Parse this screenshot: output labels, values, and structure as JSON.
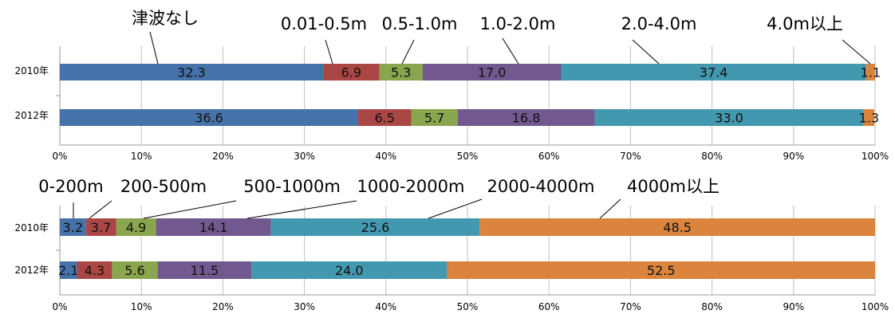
{
  "colors": [
    "#4672aa",
    "#aa4643",
    "#89a54e",
    "#71588f",
    "#4198af",
    "#db843d"
  ],
  "chart_data": [
    {
      "type": "bar",
      "orientation": "horizontal",
      "stacked": true,
      "percent_stacked": true,
      "categories": [
        "2010年",
        "2012年"
      ],
      "series": [
        {
          "name": "津波なし",
          "values": [
            32.3,
            36.6
          ]
        },
        {
          "name": "0.01-0.5m",
          "values": [
            6.9,
            6.5
          ]
        },
        {
          "name": "0.5-1.0m",
          "values": [
            5.3,
            5.7
          ]
        },
        {
          "name": "1.0-2.0m",
          "values": [
            17.0,
            16.8
          ]
        },
        {
          "name": "2.0-4.0m",
          "values": [
            37.4,
            33.0
          ]
        },
        {
          "name": "4.0m以上",
          "values": [
            1.1,
            1.3
          ]
        }
      ],
      "data_labels": [
        [
          "32.3",
          "6.9",
          "5.3",
          "17.0",
          "37.4",
          "1.1"
        ],
        [
          "36.6",
          "6.5",
          "5.7",
          "16.8",
          "33.0",
          "1.3"
        ]
      ],
      "x_ticks": [
        "0%",
        "10%",
        "20%",
        "30%",
        "40%",
        "50%",
        "60%",
        "70%",
        "80%",
        "90%",
        "100%"
      ],
      "xlim": [
        0,
        100
      ],
      "grid": true,
      "legend": "top, callout labels with leader lines"
    },
    {
      "type": "bar",
      "orientation": "horizontal",
      "stacked": true,
      "percent_stacked": true,
      "categories": [
        "2010年",
        "2012年"
      ],
      "series": [
        {
          "name": "0-200m",
          "values": [
            3.2,
            2.1
          ]
        },
        {
          "name": "200-500m",
          "values": [
            3.7,
            4.3
          ]
        },
        {
          "name": "500-1000m",
          "values": [
            4.9,
            5.6
          ]
        },
        {
          "name": "1000-2000m",
          "values": [
            14.1,
            11.5
          ]
        },
        {
          "name": "2000-4000m",
          "values": [
            25.6,
            24.0
          ]
        },
        {
          "name": "4000m以上",
          "values": [
            48.5,
            52.5
          ]
        }
      ],
      "data_labels": [
        [
          "3.2",
          "3.7",
          "4.9",
          "14.1",
          "25.6",
          "48.5"
        ],
        [
          "2.1",
          "4.3",
          "5.6",
          "11.5",
          "24.0",
          "52.5"
        ]
      ],
      "x_ticks": [
        "0%",
        "10%",
        "20%",
        "30%",
        "40%",
        "50%",
        "60%",
        "70%",
        "80%",
        "90%",
        "100%"
      ],
      "xlim": [
        0,
        100
      ],
      "grid": true,
      "legend": "top, callout labels with leader lines"
    }
  ]
}
